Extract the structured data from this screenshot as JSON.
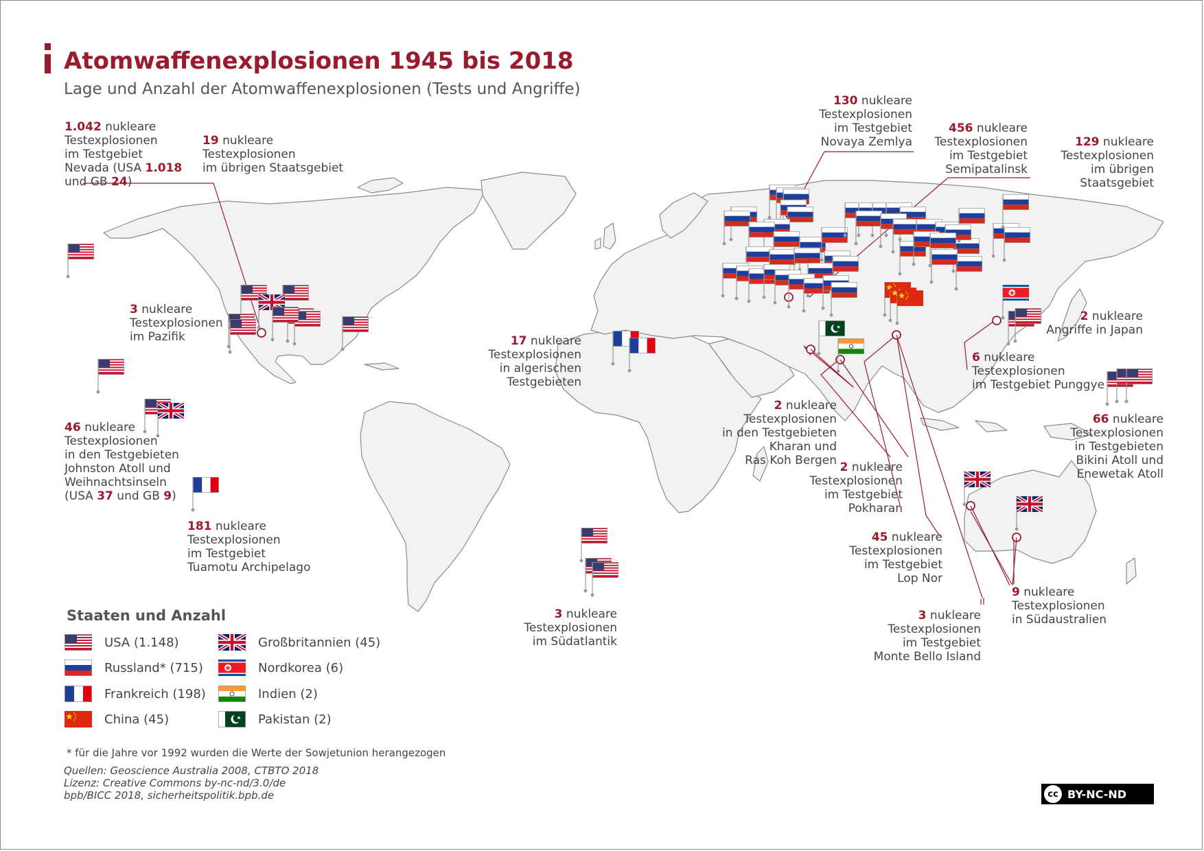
{
  "header": {
    "title": "Atomwaffenexplosionen 1945 bis 2018",
    "subtitle": "Lage und Anzahl der Atomwaffenexplosionen (Tests und Angriffe)"
  },
  "annotations": [
    {
      "id": "nevada",
      "lines": [
        [
          "1.042",
          " nukleare"
        ],
        [
          "Testexplosionen"
        ],
        [
          "im Testgebiet"
        ],
        [
          "Nevada (USA ",
          "1.018"
        ],
        [
          "und GB ",
          "24",
          ")"
        ]
      ]
    },
    {
      "id": "usa-rest",
      "lines": [
        [
          "19",
          " nukleare"
        ],
        [
          "Testexplosionen"
        ],
        [
          "im übrigen Staatsgebiet"
        ]
      ]
    },
    {
      "id": "pacific",
      "lines": [
        [
          "3",
          " nukleare"
        ],
        [
          "Testexplosionen"
        ],
        [
          "im Pazifik"
        ]
      ]
    },
    {
      "id": "johnston",
      "lines": [
        [
          "46",
          " nukleare"
        ],
        [
          "Testexplosionen"
        ],
        [
          "in den Testgebieten"
        ],
        [
          "Johnston Atoll und"
        ],
        [
          "Weihnachtsinseln"
        ],
        [
          "(USA ",
          "37",
          " und GB ",
          "9",
          ")"
        ]
      ]
    },
    {
      "id": "tuamotu",
      "lines": [
        [
          "181",
          " nukleare"
        ],
        [
          "Testexplosionen"
        ],
        [
          "im Testgebiet"
        ],
        [
          "Tuamotu Archipelago"
        ]
      ]
    },
    {
      "id": "algeria",
      "lines": [
        [
          "17",
          " nukleare"
        ],
        [
          "Testexplosionen"
        ],
        [
          "in algerischen"
        ],
        [
          "Testgebieten"
        ]
      ]
    },
    {
      "id": "south-atlantic",
      "lines": [
        [
          "3",
          " nukleare"
        ],
        [
          "Testexplosionen"
        ],
        [
          "im Südatlantik"
        ]
      ]
    },
    {
      "id": "novaya",
      "lines": [
        [
          "130",
          " nukleare"
        ],
        [
          "Testexplosionen"
        ],
        [
          "im Testgebiet"
        ],
        [
          "Novaya Zemlya"
        ]
      ]
    },
    {
      "id": "semipalatinsk",
      "lines": [
        [
          "456",
          " nukleare"
        ],
        [
          "Testexplosionen"
        ],
        [
          "im Testgebiet"
        ],
        [
          "Semipatalinsk"
        ]
      ]
    },
    {
      "id": "russia-rest",
      "lines": [
        [
          "129",
          " nukleare"
        ],
        [
          "Testexplosionen"
        ],
        [
          "im übrigen"
        ],
        [
          "Staatsgebiet"
        ]
      ]
    },
    {
      "id": "japan",
      "lines": [
        [
          "2",
          " nukleare"
        ],
        [
          "Angriffe in Japan"
        ]
      ]
    },
    {
      "id": "punggye",
      "lines": [
        [
          "6",
          " nukleare"
        ],
        [
          "Testexplosionen"
        ],
        [
          "im Testgebiet Punggye"
        ]
      ]
    },
    {
      "id": "bikini",
      "lines": [
        [
          "66",
          " nukleare"
        ],
        [
          "Testexplosionen"
        ],
        [
          "in Testgebieten"
        ],
        [
          "Bikini Atoll und"
        ],
        [
          "Enewetak Atoll"
        ]
      ]
    },
    {
      "id": "kharan",
      "lines": [
        [
          "2",
          " nukleare"
        ],
        [
          "Testexplosionen"
        ],
        [
          "in den Testgebieten"
        ],
        [
          "Kharan und"
        ],
        [
          "Ras Koh Bergen"
        ]
      ]
    },
    {
      "id": "pokharan",
      "lines": [
        [
          "2",
          " nukleare"
        ],
        [
          "Testexplosionen"
        ],
        [
          "im Testgebiet"
        ],
        [
          "Pokharan"
        ]
      ]
    },
    {
      "id": "lopnor",
      "lines": [
        [
          "45",
          " nukleare"
        ],
        [
          "Testexplosionen"
        ],
        [
          "im Testgebiet"
        ],
        [
          "Lop Nor"
        ]
      ]
    },
    {
      "id": "montebello",
      "lines": [
        [
          "3",
          " nukleare"
        ],
        [
          "Testexplosionen"
        ],
        [
          "im Testgebiet"
        ],
        [
          "Monte Bello Island"
        ]
      ]
    },
    {
      "id": "south-australia",
      "lines": [
        [
          "9",
          " nukleare"
        ],
        [
          "Testexplosionen"
        ],
        [
          "in Südaustralien"
        ]
      ]
    }
  ],
  "legend": {
    "title": "Staaten und Anzahl",
    "items": [
      {
        "flag": "usa",
        "label": "USA (1.148)"
      },
      {
        "flag": "russia",
        "label": "Russland* (715)"
      },
      {
        "flag": "france",
        "label": "Frankreich (198)"
      },
      {
        "flag": "china",
        "label": "China (45)"
      },
      {
        "flag": "uk",
        "label": "Großbritannien (45)"
      },
      {
        "flag": "northkorea",
        "label": "Nordkorea (6)"
      },
      {
        "flag": "india",
        "label": "Indien (2)"
      },
      {
        "flag": "pakistan",
        "label": "Pakistan (2)"
      }
    ]
  },
  "footnote": "* für die Jahre vor 1992 wurden die Werte der Sowjetunion herangezogen",
  "sources": {
    "line1": "Quellen: Geoscience Australia 2008, CTBTO 2018",
    "line2": "Lizenz: Creative Commons by-nc-nd/3.0/de",
    "line3": "bpb/BICC 2018, sicherheitspolitik.bpb.de"
  },
  "license_badge": {
    "cc": "cc",
    "text": "BY-NC-ND"
  },
  "colors": {
    "accent": "#9a1b2e",
    "land": "#f2f2f2",
    "border": "#8a8a8a"
  }
}
